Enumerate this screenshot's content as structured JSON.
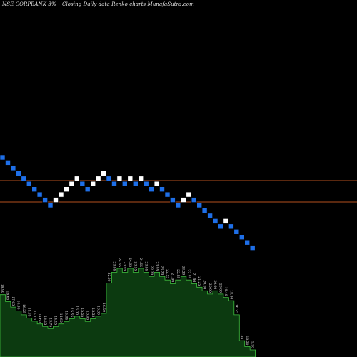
{
  "title": "NSE CORPBANK 3%~ Closing Daily data Renko charts MunafaSutra.com",
  "colors": {
    "background": "#000000",
    "up_brick": "#ffffff",
    "down_brick": "#1e6fe8",
    "brick_border": "#000000",
    "reference_line": "#b5501e",
    "area_fill": "#0c3a10",
    "area_stroke": "#3fbf3f",
    "value_label": "#e6e6e6"
  },
  "chart_data": [
    {
      "type": "renko",
      "title": "NSE CORPBANK 3%~ Closing Daily data Renko charts MunafaSutra.com",
      "brick_size_percent": 3,
      "reference_lines": [],
      "bricks": [
        "down",
        "down",
        "down",
        "down",
        "down",
        "down",
        "down",
        "down",
        "down",
        "down",
        "up",
        "up",
        "up",
        "up",
        "up",
        "down",
        "down",
        "up",
        "up",
        "up",
        "down",
        "down",
        "up",
        "down",
        "up",
        "down",
        "up",
        "down",
        "down",
        "up",
        "down",
        "down",
        "down",
        "down",
        "up",
        "up",
        "down",
        "down",
        "down",
        "down",
        "down",
        "down",
        "up",
        "down",
        "down",
        "down",
        "down",
        "down"
      ]
    },
    {
      "type": "area",
      "labels": [
        "19.90",
        "18.65",
        "17.65",
        "16.95",
        "16.25",
        "15.65",
        "15.10",
        "14.60",
        "14.15",
        "13.75",
        "14.15",
        "14.60",
        "15.05",
        "15.55",
        "16.00",
        "15.55",
        "15.05",
        "15.55",
        "16.00",
        "16.50",
        "22.00",
        "23.95",
        "24.65",
        "23.95",
        "24.65",
        "23.95",
        "24.65",
        "23.95",
        "23.20",
        "23.95",
        "23.20",
        "22.55",
        "21.90",
        "22.55",
        "23.20",
        "22.55",
        "21.90",
        "21.25",
        "20.60",
        "20.00",
        "20.60",
        "20.00",
        "19.40",
        "18.80",
        "16.25",
        "11.55",
        "10.50",
        "9.90"
      ],
      "values": [
        19.9,
        18.65,
        17.65,
        16.95,
        16.25,
        15.65,
        15.1,
        14.6,
        14.15,
        13.75,
        14.15,
        14.6,
        15.05,
        15.55,
        16.0,
        15.55,
        15.05,
        15.55,
        16.0,
        16.5,
        22.0,
        23.95,
        24.65,
        23.95,
        24.65,
        23.95,
        24.65,
        23.95,
        23.2,
        23.95,
        23.2,
        22.55,
        21.9,
        22.55,
        23.2,
        22.55,
        21.9,
        21.25,
        20.6,
        20.0,
        20.6,
        20.0,
        19.4,
        18.8,
        16.25,
        11.55,
        10.5,
        9.9
      ]
    }
  ]
}
